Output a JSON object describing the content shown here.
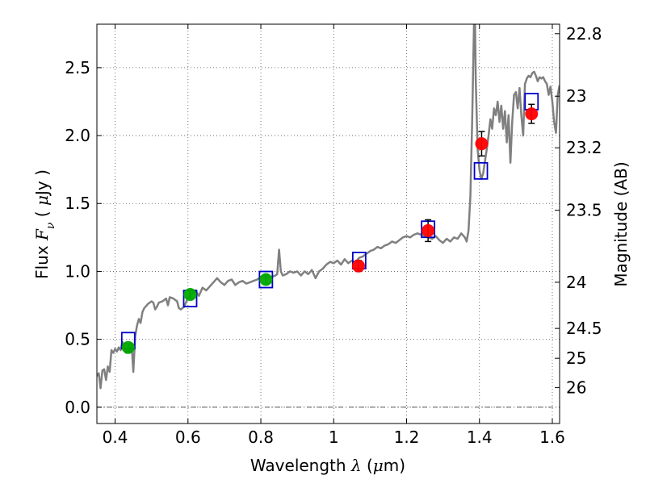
{
  "chart_data": {
    "type": "scatter",
    "xlabel": {
      "prefix": "Wavelength ",
      "symbol": "λ",
      "unit_open": " (",
      "unit_mu": "μ",
      "unit_rest": "m)"
    },
    "ylabel": {
      "prefix": "Flux ",
      "symbol": "F",
      "sub": "ν",
      "unit_open": " ( ",
      "unit_mu": "μ",
      "unit_rest": "Jy )"
    },
    "y2label": "Magnitude (AB)",
    "xlim": [
      0.35,
      1.62
    ],
    "ylim": [
      -0.12,
      2.82
    ],
    "grid": true,
    "x_ticks": [
      {
        "value": 0.4,
        "label": "0.4"
      },
      {
        "value": 0.6,
        "label": "0.6"
      },
      {
        "value": 0.8,
        "label": "0.8"
      },
      {
        "value": 1.0,
        "label": "1"
      },
      {
        "value": 1.2,
        "label": "1.2"
      },
      {
        "value": 1.4,
        "label": "1.4"
      },
      {
        "value": 1.6,
        "label": "1.6"
      }
    ],
    "y_ticks": [
      {
        "value": 0.0,
        "label": "0.0"
      },
      {
        "value": 0.5,
        "label": "0.5"
      },
      {
        "value": 1.0,
        "label": "1.0"
      },
      {
        "value": 1.5,
        "label": "1.5"
      },
      {
        "value": 2.0,
        "label": "2.0"
      },
      {
        "value": 2.5,
        "label": "2.5"
      }
    ],
    "right_ticks": [
      {
        "flux": 2.75,
        "label": "22.8"
      },
      {
        "flux": 2.29,
        "label": "23"
      },
      {
        "flux": 1.91,
        "label": "23.2"
      },
      {
        "flux": 1.45,
        "label": "23.5"
      },
      {
        "flux": 0.92,
        "label": "24"
      },
      {
        "flux": 0.58,
        "label": "24.5"
      },
      {
        "flux": 0.36,
        "label": "25"
      },
      {
        "flux": 0.145,
        "label": "26"
      }
    ],
    "zero_line": 0.0,
    "colors": {
      "spectrum": "#808080",
      "model_box": "#0000cc",
      "optical_point": "#00aa00",
      "nir_point": "#ff0000",
      "errorbar": "#000000",
      "grid": "#555555"
    },
    "series": [
      {
        "name": "model spectrum",
        "kind": "line",
        "points": [
          [
            0.35,
            0.23
          ],
          [
            0.355,
            0.25
          ],
          [
            0.36,
            0.14
          ],
          [
            0.365,
            0.27
          ],
          [
            0.37,
            0.28
          ],
          [
            0.375,
            0.2
          ],
          [
            0.38,
            0.3
          ],
          [
            0.385,
            0.26
          ],
          [
            0.39,
            0.42
          ],
          [
            0.395,
            0.4
          ],
          [
            0.4,
            0.43
          ],
          [
            0.405,
            0.41
          ],
          [
            0.41,
            0.44
          ],
          [
            0.415,
            0.42
          ],
          [
            0.42,
            0.48
          ],
          [
            0.425,
            0.45
          ],
          [
            0.43,
            0.4
          ],
          [
            0.435,
            0.44
          ],
          [
            0.44,
            0.4
          ],
          [
            0.445,
            0.47
          ],
          [
            0.45,
            0.26
          ],
          [
            0.455,
            0.52
          ],
          [
            0.46,
            0.6
          ],
          [
            0.465,
            0.65
          ],
          [
            0.47,
            0.62
          ],
          [
            0.475,
            0.7
          ],
          [
            0.48,
            0.73
          ],
          [
            0.49,
            0.76
          ],
          [
            0.5,
            0.78
          ],
          [
            0.505,
            0.77
          ],
          [
            0.51,
            0.72
          ],
          [
            0.515,
            0.74
          ],
          [
            0.52,
            0.77
          ],
          [
            0.53,
            0.78
          ],
          [
            0.54,
            0.8
          ],
          [
            0.545,
            0.75
          ],
          [
            0.55,
            0.81
          ],
          [
            0.56,
            0.8
          ],
          [
            0.57,
            0.78
          ],
          [
            0.575,
            0.73
          ],
          [
            0.58,
            0.72
          ],
          [
            0.59,
            0.74
          ],
          [
            0.6,
            0.81
          ],
          [
            0.61,
            0.83
          ],
          [
            0.62,
            0.86
          ],
          [
            0.63,
            0.82
          ],
          [
            0.64,
            0.88
          ],
          [
            0.65,
            0.86
          ],
          [
            0.66,
            0.89
          ],
          [
            0.67,
            0.92
          ],
          [
            0.68,
            0.95
          ],
          [
            0.69,
            0.92
          ],
          [
            0.7,
            0.9
          ],
          [
            0.71,
            0.93
          ],
          [
            0.72,
            0.94
          ],
          [
            0.73,
            0.9
          ],
          [
            0.74,
            0.92
          ],
          [
            0.75,
            0.93
          ],
          [
            0.76,
            0.91
          ],
          [
            0.77,
            0.92
          ],
          [
            0.78,
            0.93
          ],
          [
            0.79,
            0.94
          ],
          [
            0.8,
            0.96
          ],
          [
            0.81,
            0.97
          ],
          [
            0.82,
            0.95
          ],
          [
            0.83,
            0.96
          ],
          [
            0.84,
            0.97
          ],
          [
            0.845,
            0.98
          ],
          [
            0.85,
            1.16
          ],
          [
            0.855,
            1.0
          ],
          [
            0.86,
            0.97
          ],
          [
            0.87,
            0.98
          ],
          [
            0.88,
            1.0
          ],
          [
            0.89,
            0.99
          ],
          [
            0.9,
            1.0
          ],
          [
            0.91,
            0.97
          ],
          [
            0.92,
            1.0
          ],
          [
            0.93,
            0.98
          ],
          [
            0.94,
            1.01
          ],
          [
            0.95,
            0.95
          ],
          [
            0.96,
            1.0
          ],
          [
            0.97,
            1.02
          ],
          [
            0.98,
            1.05
          ],
          [
            0.99,
            1.07
          ],
          [
            1.0,
            1.06
          ],
          [
            1.01,
            1.08
          ],
          [
            1.02,
            1.05
          ],
          [
            1.03,
            1.09
          ],
          [
            1.04,
            1.06
          ],
          [
            1.05,
            1.08
          ],
          [
            1.06,
            1.07
          ],
          [
            1.07,
            1.1
          ],
          [
            1.08,
            1.11
          ],
          [
            1.09,
            1.13
          ],
          [
            1.1,
            1.15
          ],
          [
            1.11,
            1.16
          ],
          [
            1.12,
            1.18
          ],
          [
            1.13,
            1.17
          ],
          [
            1.14,
            1.19
          ],
          [
            1.15,
            1.2
          ],
          [
            1.16,
            1.22
          ],
          [
            1.17,
            1.21
          ],
          [
            1.18,
            1.23
          ],
          [
            1.19,
            1.25
          ],
          [
            1.2,
            1.26
          ],
          [
            1.21,
            1.25
          ],
          [
            1.22,
            1.27
          ],
          [
            1.23,
            1.28
          ],
          [
            1.24,
            1.27
          ],
          [
            1.25,
            1.26
          ],
          [
            1.26,
            1.25
          ],
          [
            1.27,
            1.24
          ],
          [
            1.28,
            1.26
          ],
          [
            1.29,
            1.23
          ],
          [
            1.3,
            1.21
          ],
          [
            1.31,
            1.24
          ],
          [
            1.32,
            1.22
          ],
          [
            1.33,
            1.25
          ],
          [
            1.34,
            1.24
          ],
          [
            1.35,
            1.28
          ],
          [
            1.36,
            1.25
          ],
          [
            1.365,
            1.22
          ],
          [
            1.37,
            1.3
          ],
          [
            1.375,
            1.55
          ],
          [
            1.38,
            2.1
          ],
          [
            1.385,
            2.82
          ],
          [
            1.388,
            2.82
          ],
          [
            1.39,
            2.4
          ],
          [
            1.395,
            1.9
          ],
          [
            1.4,
            1.75
          ],
          [
            1.405,
            1.68
          ],
          [
            1.41,
            1.72
          ],
          [
            1.42,
            1.9
          ],
          [
            1.425,
            2.0
          ],
          [
            1.43,
            2.12
          ],
          [
            1.435,
            2.05
          ],
          [
            1.44,
            2.2
          ],
          [
            1.445,
            2.15
          ],
          [
            1.45,
            2.25
          ],
          [
            1.455,
            2.1
          ],
          [
            1.46,
            2.22
          ],
          [
            1.465,
            2.05
          ],
          [
            1.47,
            2.18
          ],
          [
            1.475,
            1.95
          ],
          [
            1.48,
            2.15
          ],
          [
            1.485,
            1.8
          ],
          [
            1.49,
            2.1
          ],
          [
            1.495,
            2.3
          ],
          [
            1.5,
            2.32
          ],
          [
            1.505,
            2.2
          ],
          [
            1.51,
            2.35
          ],
          [
            1.515,
            2.15
          ],
          [
            1.52,
            2.0
          ],
          [
            1.525,
            2.38
          ],
          [
            1.53,
            2.42
          ],
          [
            1.535,
            2.44
          ],
          [
            1.54,
            2.43
          ],
          [
            1.545,
            2.46
          ],
          [
            1.55,
            2.47
          ],
          [
            1.555,
            2.44
          ],
          [
            1.56,
            2.4
          ],
          [
            1.565,
            2.43
          ],
          [
            1.57,
            2.42
          ],
          [
            1.575,
            2.43
          ],
          [
            1.58,
            2.4
          ],
          [
            1.585,
            2.38
          ],
          [
            1.59,
            2.3
          ],
          [
            1.595,
            2.36
          ],
          [
            1.6,
            2.25
          ],
          [
            1.605,
            2.1
          ],
          [
            1.61,
            2.02
          ],
          [
            1.615,
            2.3
          ],
          [
            1.62,
            2.37
          ]
        ]
      },
      {
        "name": "model photometry",
        "kind": "box",
        "points": [
          [
            0.436,
            0.49
          ],
          [
            0.606,
            0.8
          ],
          [
            0.814,
            0.94
          ],
          [
            1.07,
            1.08
          ],
          [
            1.259,
            1.31
          ],
          [
            1.404,
            1.74
          ],
          [
            1.543,
            2.25
          ]
        ]
      },
      {
        "name": "optical photometry",
        "kind": "point",
        "color": "optical_point",
        "points": [
          {
            "x": 0.436,
            "y": 0.44,
            "err": 0.03
          },
          {
            "x": 0.606,
            "y": 0.83,
            "err": 0.03
          },
          {
            "x": 0.814,
            "y": 0.94,
            "err": 0.03
          }
        ]
      },
      {
        "name": "near-IR photometry",
        "kind": "point",
        "color": "nir_point",
        "points": [
          {
            "x": 1.068,
            "y": 1.04,
            "err": 0.04
          },
          {
            "x": 1.259,
            "y": 1.3,
            "err": 0.08
          },
          {
            "x": 1.406,
            "y": 1.94,
            "err": 0.09
          },
          {
            "x": 1.543,
            "y": 2.16,
            "err": 0.07
          }
        ]
      }
    ]
  }
}
